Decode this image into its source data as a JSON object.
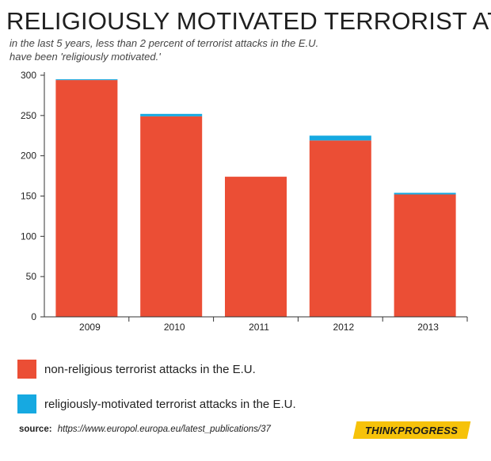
{
  "header": {
    "title": "RELIGIOUSLY MOTIVATED TERRORIST ATTACKS",
    "subtitle_line1": "in the last 5 years, less than 2 percent of terrorist attacks in the E.U.",
    "subtitle_line2": "have been 'religiously motivated.'"
  },
  "colors": {
    "non_religious": "#eb4e35",
    "religious": "#16a9e1",
    "axis": "#333333",
    "brand_bg": "#f6c20a"
  },
  "chart_data": {
    "type": "bar",
    "stacked": true,
    "categories": [
      "2009",
      "2010",
      "2011",
      "2012",
      "2013"
    ],
    "series": [
      {
        "name": "non-religious terrorist attacks in the E.U.",
        "color": "#eb4e35",
        "values": [
          294,
          249,
          174,
          219,
          152
        ]
      },
      {
        "name": "religiously-motivated terrorist attacks in the E.U.",
        "color": "#16a9e1",
        "values": [
          1,
          3,
          0,
          6,
          2
        ]
      }
    ],
    "ylim": [
      0,
      300
    ],
    "yticks": [
      "0",
      "50",
      "100",
      "150",
      "200",
      "250",
      "300"
    ],
    "grid": false,
    "legend_position": "bottom-left"
  },
  "legend": {
    "items": [
      {
        "label": "non-religious terrorist attacks in the E.U.",
        "color": "#eb4e35"
      },
      {
        "label": "religiously-motivated terrorist attacks in the E.U.",
        "color": "#16a9e1"
      }
    ]
  },
  "footer": {
    "source_label": "source:",
    "source_url": "https://www.europol.europa.eu/latest_publications/37",
    "brand": "THINKPROGRESS"
  }
}
